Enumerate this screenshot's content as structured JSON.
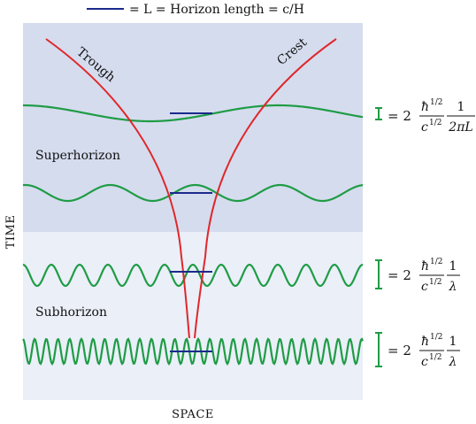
{
  "legend": {
    "label": "= L = Horizon length = c/H"
  },
  "axes": {
    "time": "TIME",
    "space": "SPACE"
  },
  "regions": {
    "superhorizon": "Superhorizon",
    "subhorizon": "Subhorizon"
  },
  "curves": {
    "trough": "Trough",
    "crest": "Crest"
  },
  "formulas": {
    "f1": {
      "eq": "= 2",
      "num1": "ħ",
      "sup1": "1/2",
      "den1": "c",
      "sup2": "1/2",
      "num2": "1",
      "den2": "2πL"
    },
    "f2": {
      "eq": "= 2",
      "num1": "ħ",
      "sup1": "1/2",
      "den1": "c",
      "sup2": "1/2",
      "num2": "1",
      "den2": "λ"
    },
    "f3": {
      "eq": "= 2",
      "num1": "ħ",
      "sup1": "1/2",
      "den1": "c",
      "sup2": "1/2",
      "num2": "1",
      "den2": "λ"
    }
  },
  "colors": {
    "superhorizon_bg": "#d5dcee",
    "subhorizon_bg": "#eaeff8",
    "wave": "#1f9c45",
    "horizon_bar": "#1b2a8c",
    "curve": "#e0272a"
  }
}
